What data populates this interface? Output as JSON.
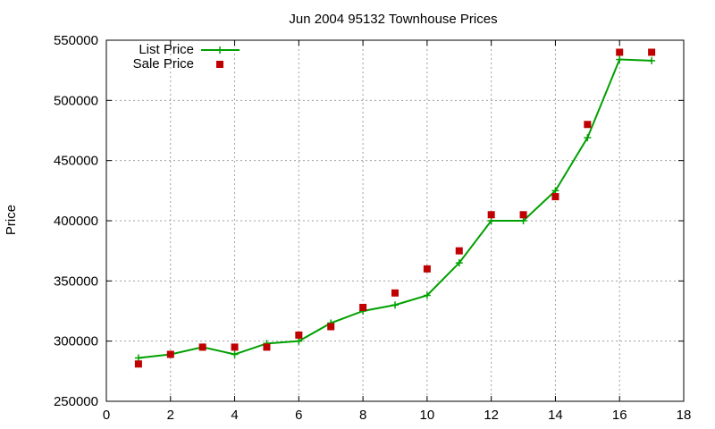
{
  "chart_data": {
    "type": "line",
    "title": "Jun 2004 95132 Townhouse Prices",
    "xlabel": "",
    "ylabel": "Price",
    "xlim": [
      0,
      18
    ],
    "ylim": [
      250000,
      550000
    ],
    "x_ticks": [
      0,
      2,
      4,
      6,
      8,
      10,
      12,
      14,
      16,
      18
    ],
    "y_ticks": [
      250000,
      300000,
      350000,
      400000,
      450000,
      500000,
      550000
    ],
    "grid": true,
    "legend_position": "top-left",
    "series": [
      {
        "name": "List Price",
        "style": "line-with-plus-markers",
        "color": "#00a000",
        "x": [
          1,
          2,
          3,
          4,
          5,
          6,
          7,
          8,
          9,
          10,
          11,
          12,
          13,
          14,
          15,
          16,
          17
        ],
        "values": [
          286000,
          289000,
          295000,
          289000,
          298000,
          300000,
          315000,
          325000,
          330000,
          338000,
          365000,
          400000,
          400000,
          425000,
          469000,
          534000,
          533000
        ]
      },
      {
        "name": "Sale Price",
        "style": "square-markers",
        "color": "#c00000",
        "x": [
          1,
          2,
          3,
          4,
          5,
          6,
          7,
          8,
          9,
          10,
          11,
          12,
          13,
          14,
          15,
          16,
          17
        ],
        "values": [
          281000,
          289000,
          295000,
          295000,
          295000,
          305000,
          312000,
          328000,
          340000,
          360000,
          375000,
          405000,
          405000,
          420000,
          480000,
          540000,
          540000
        ]
      }
    ]
  }
}
